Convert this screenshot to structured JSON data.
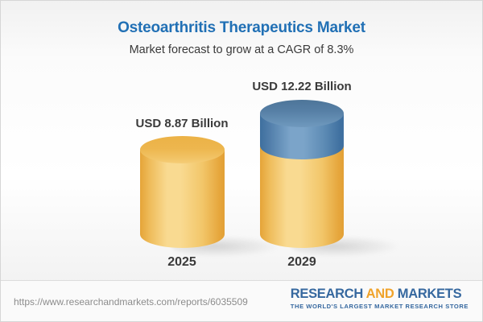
{
  "header": {
    "title": "Osteoarthritis Therapeutics Market",
    "subtitle": "Market forecast to grow at a CAGR of 8.3%"
  },
  "chart_data": {
    "type": "bar",
    "bar_style": "3d-cylinder",
    "title": "Osteoarthritis Therapeutics Market",
    "subtitle": "Market forecast to grow at a CAGR of 8.3%",
    "categories": [
      "2025",
      "2029"
    ],
    "values": [
      8.87,
      12.22
    ],
    "value_labels": [
      "USD 8.87 Billion",
      "USD 12.22 Billion"
    ],
    "unit": "USD Billion",
    "cagr_percent": 8.3,
    "legend": "none",
    "notes": "2029 cylinder shows growth segment above the 2025 base value in blue",
    "colors": {
      "base_segment_gold": "#F2C566",
      "growth_segment_blue": "#5E8CB5",
      "title_blue": "#2170B5",
      "label_gray": "#3A3A3A"
    }
  },
  "footer": {
    "url": "https://www.researchandmarkets.com/reports/6035509",
    "logo": {
      "word1": "RESEARCH",
      "word2": "AND",
      "word3": "MARKETS",
      "tagline": "THE WORLD'S LARGEST MARKET RESEARCH STORE",
      "blue": "#36689F",
      "orange": "#F0A32A"
    }
  }
}
